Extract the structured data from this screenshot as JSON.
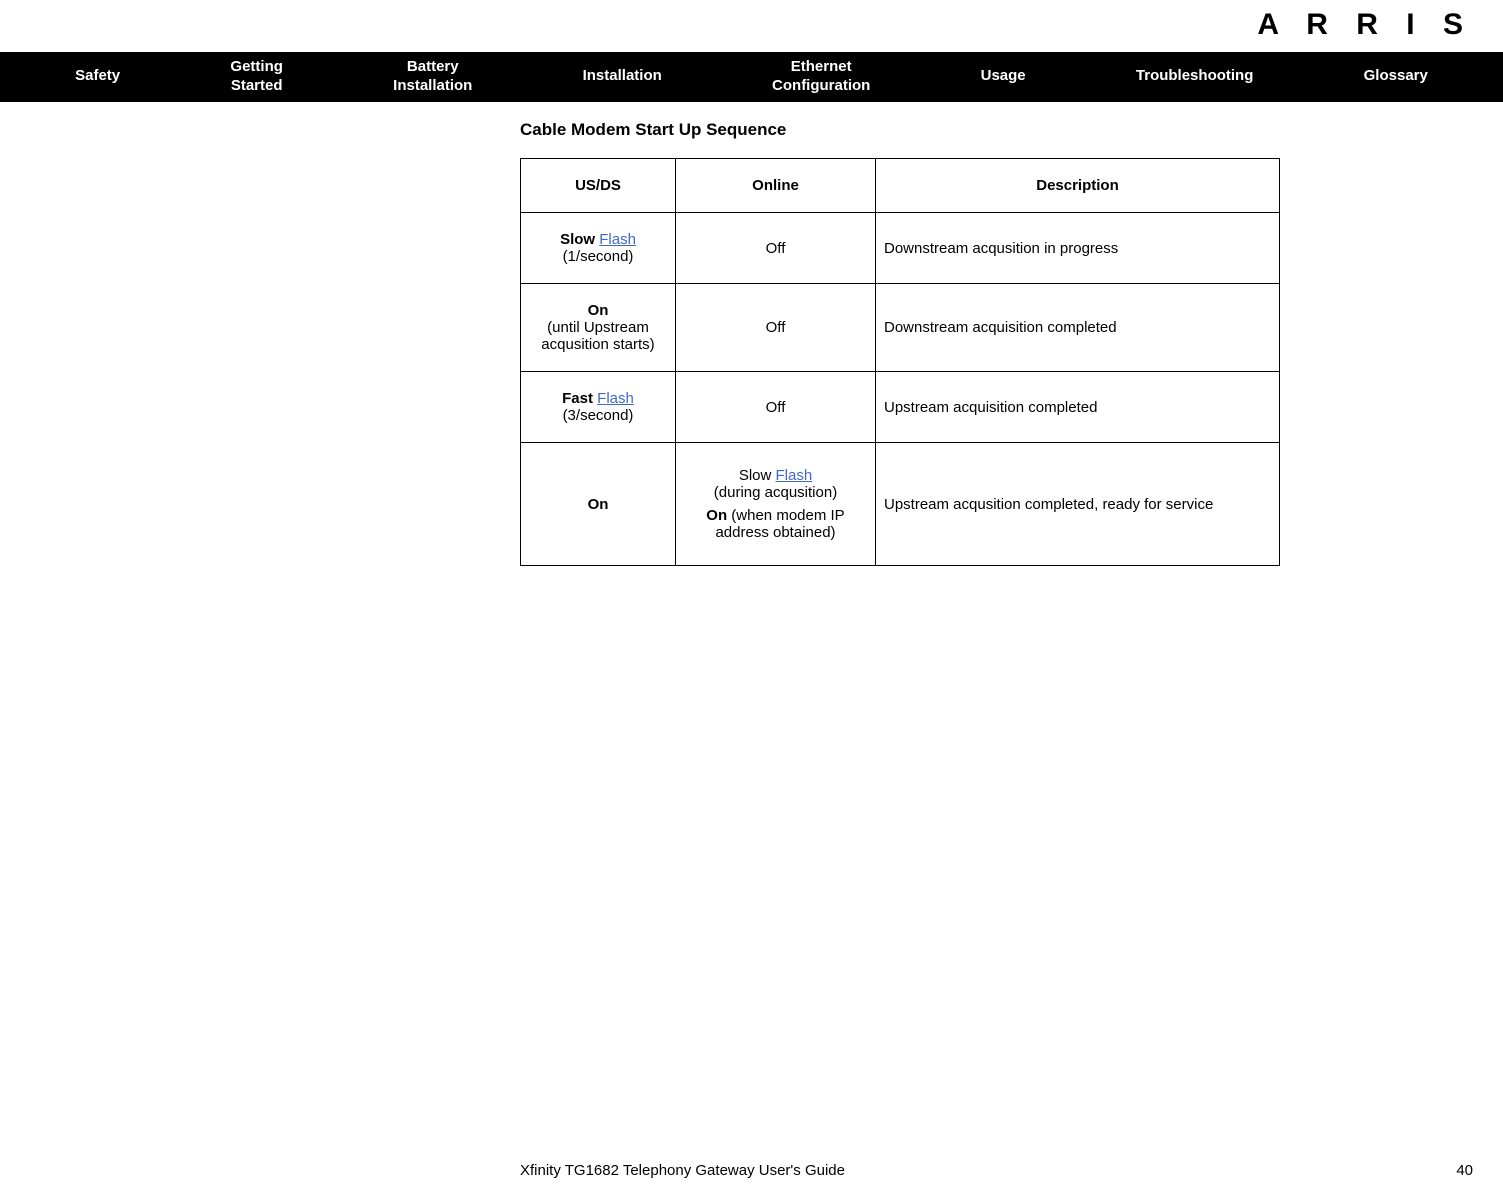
{
  "logo": "A R R I S",
  "nav": {
    "items": [
      "Safety",
      "Getting\nStarted",
      "Battery\nInstallation",
      "Installation",
      "Ethernet\nConfiguration",
      "Usage",
      "Troubleshooting",
      "Glossary"
    ]
  },
  "section_title": "Cable Modem Start Up Sequence",
  "table": {
    "headers": {
      "usds": "US/DS",
      "online": "Online",
      "desc": "Description"
    },
    "flash_word": "Flash",
    "rows": [
      {
        "usds_bold": "Slow ",
        "usds_sub": "(1/second)",
        "online_plain": "Off",
        "desc": "Downstream acqusition in progress"
      },
      {
        "usds_bold": "On",
        "usds_sub": "(until Upstream acqusition starts)",
        "online_plain": "Off",
        "desc": "Downstream acquisition completed"
      },
      {
        "usds_bold": "Fast ",
        "usds_sub": "(3/second)",
        "online_plain": "Off",
        "desc": "Upstream acquisition completed"
      },
      {
        "usds_bold": "On",
        "online_slow_prefix": "Slow ",
        "online_slow_suffix": "(during acqusition)",
        "online_on_bold": "On ",
        "online_on_suffix": "(when modem IP address obtained)",
        "desc": "Upstream acqusition completed, ready for service"
      }
    ]
  },
  "footer": {
    "guide": "Xfinity TG1682 Telephony Gateway User's Guide",
    "page": "40"
  },
  "colors": {
    "nav_bg": "#000000",
    "nav_fg": "#ffffff",
    "link": "#4169c9",
    "border": "#000000"
  }
}
